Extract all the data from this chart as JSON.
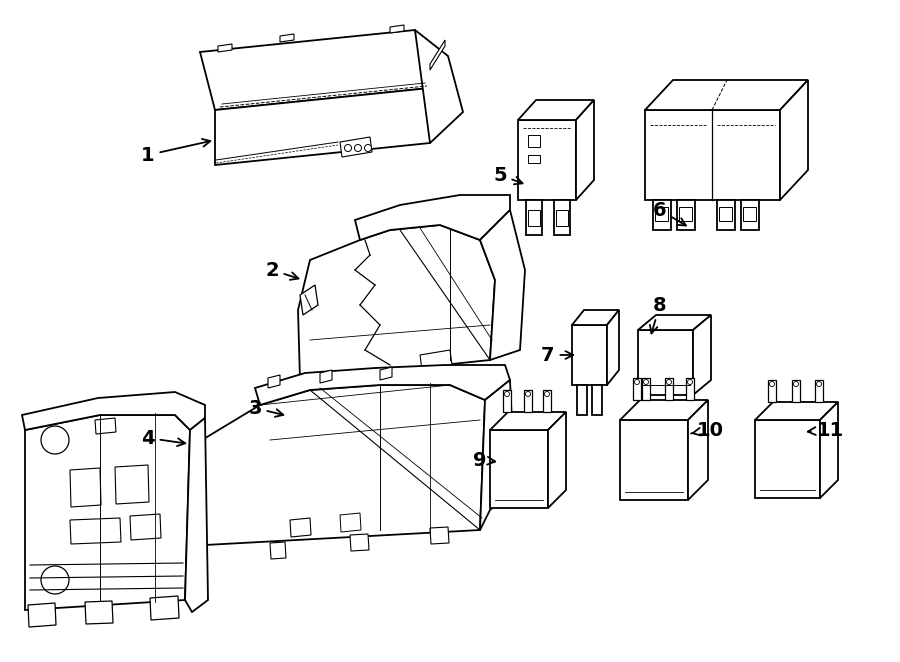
{
  "bg": "#ffffff",
  "lc": "#000000",
  "lw": 1.3,
  "fig_w": 9.0,
  "fig_h": 6.62,
  "dpi": 100
}
